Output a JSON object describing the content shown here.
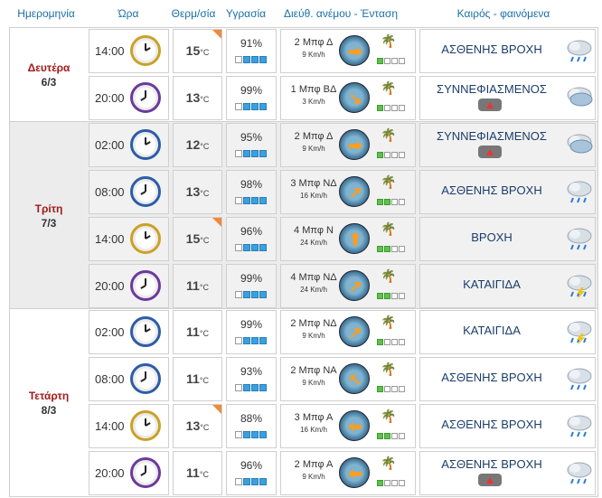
{
  "headers": {
    "date": "Ημερομηνία",
    "time": "Ώρα",
    "temp": "Θερμ/σία",
    "humidity": "Υγρασία",
    "wind": "Διεύθ. ανέμου - Ένταση",
    "weather": "Καιρός - φαινόμενα"
  },
  "unit": "°C",
  "days": [
    {
      "name": "Δευτέρα",
      "date": "6/3",
      "rows": [
        {
          "time": "14:00",
          "temp": "15",
          "hot": true,
          "humidity": "91%",
          "hum_level": 3,
          "wind": "2 Μπφ Δ",
          "speed": "9 Km/h",
          "wind_dir": "arrow-right",
          "wind_level": 1,
          "cond": "ΑΣΘΕΝΗΣ ΒΡΟΧΗ",
          "icon": "light-rain-icon",
          "warn": false
        },
        {
          "time": "20:00",
          "temp": "13",
          "hot": false,
          "humidity": "99%",
          "hum_level": 3,
          "wind": "1 Μπφ ΒΔ",
          "speed": "3 Km/h",
          "wind_dir": "arrow-down-right",
          "wind_level": 1,
          "cond": "ΣΥΝΝΕΦΙΑΣΜΕΝΟΣ",
          "icon": "cloudy-icon",
          "warn": true
        }
      ]
    },
    {
      "name": "Τρίτη",
      "date": "7/3",
      "rows": [
        {
          "time": "02:00",
          "temp": "12",
          "hot": false,
          "humidity": "95%",
          "hum_level": 3,
          "wind": "2 Μπφ Δ",
          "speed": "9 Km/h",
          "wind_dir": "arrow-right",
          "wind_level": 1,
          "cond": "ΣΥΝΝΕΦΙΑΣΜΕΝΟΣ",
          "icon": "cloudy-icon",
          "warn": true
        },
        {
          "time": "08:00",
          "temp": "13",
          "hot": false,
          "humidity": "98%",
          "hum_level": 3,
          "wind": "3 Μπφ ΝΔ",
          "speed": "16 Km/h",
          "wind_dir": "arrow-up-right",
          "wind_level": 2,
          "cond": "ΑΣΘΕΝΗΣ ΒΡΟΧΗ",
          "icon": "light-rain-icon",
          "warn": false
        },
        {
          "time": "14:00",
          "temp": "15",
          "hot": true,
          "humidity": "96%",
          "hum_level": 3,
          "wind": "4 Μπφ Ν",
          "speed": "24 Km/h",
          "wind_dir": "arrow-up",
          "wind_level": 2,
          "cond": "ΒΡΟΧΗ",
          "icon": "rain-icon",
          "warn": false
        },
        {
          "time": "20:00",
          "temp": "11",
          "hot": false,
          "humidity": "99%",
          "hum_level": 3,
          "wind": "4 Μπφ ΝΔ",
          "speed": "24 Km/h",
          "wind_dir": "arrow-up-right",
          "wind_level": 2,
          "cond": "ΚΑΤΑΙΓΙΔΑ",
          "icon": "thunderstorm-icon",
          "warn": false
        }
      ]
    },
    {
      "name": "Τετάρτη",
      "date": "8/3",
      "rows": [
        {
          "time": "02:00",
          "temp": "11",
          "hot": false,
          "humidity": "99%",
          "hum_level": 3,
          "wind": "2 Μπφ ΝΔ",
          "speed": "9 Km/h",
          "wind_dir": "arrow-up-right",
          "wind_level": 1,
          "cond": "ΚΑΤΑΙΓΙΔΑ",
          "icon": "thunderstorm-icon",
          "warn": false
        },
        {
          "time": "08:00",
          "temp": "11",
          "hot": false,
          "humidity": "93%",
          "hum_level": 3,
          "wind": "2 Μπφ ΝΑ",
          "speed": "9 Km/h",
          "wind_dir": "arrow-up-left",
          "wind_level": 1,
          "cond": "ΑΣΘΕΝΗΣ ΒΡΟΧΗ",
          "icon": "light-rain-icon",
          "warn": false
        },
        {
          "time": "14:00",
          "temp": "13",
          "hot": true,
          "humidity": "88%",
          "hum_level": 3,
          "wind": "3 Μπφ Α",
          "speed": "16 Km/h",
          "wind_dir": "arrow-left",
          "wind_level": 2,
          "cond": "ΑΣΘΕΝΗΣ ΒΡΟΧΗ",
          "icon": "light-rain-icon",
          "warn": false
        },
        {
          "time": "20:00",
          "temp": "11",
          "hot": false,
          "humidity": "96%",
          "hum_level": 3,
          "wind": "2 Μπφ Α",
          "speed": "9 Km/h",
          "wind_dir": "arrow-left",
          "wind_level": 1,
          "cond": "ΑΣΘΕΝΗΣ ΒΡΟΧΗ",
          "icon": "light-rain-icon",
          "warn": true
        }
      ]
    }
  ]
}
